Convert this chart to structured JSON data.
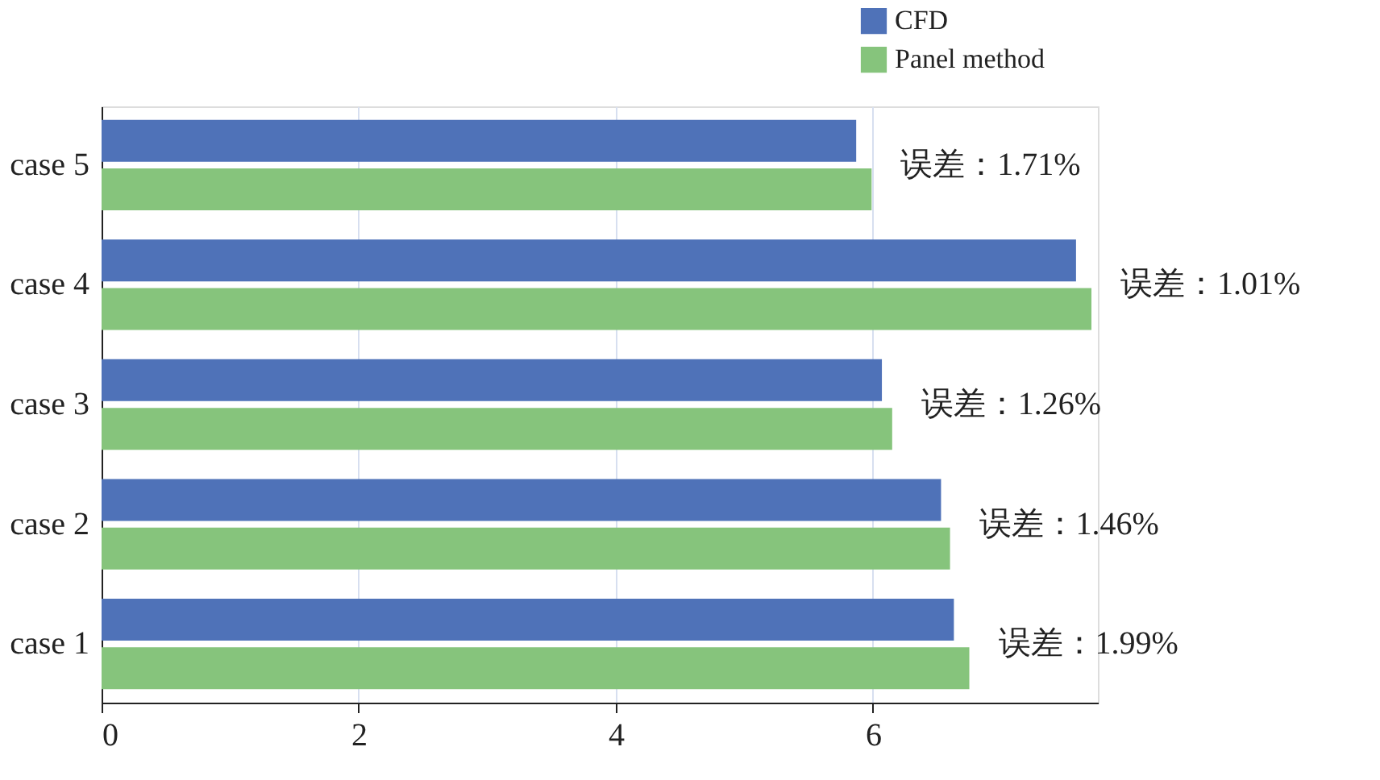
{
  "chart_data": {
    "type": "bar",
    "orientation": "horizontal",
    "categories": [
      "case 5",
      "case 4",
      "case 3",
      "case 2",
      "case 1"
    ],
    "series": [
      {
        "name": "CFD",
        "color": "#4f72b8",
        "values": [
          5.87,
          7.58,
          6.07,
          6.53,
          6.63
        ]
      },
      {
        "name": "Panel method",
        "color": "#86c47c",
        "values": [
          5.99,
          7.7,
          6.15,
          6.6,
          6.75
        ]
      }
    ],
    "xlim": [
      0,
      7.75
    ],
    "xticks": [
      0,
      2,
      4,
      6
    ],
    "grid": "x",
    "legend": "top right",
    "annotations": [
      "误差：1.71%",
      "误差：1.01%",
      "误差：1.26%",
      "误差：1.46%",
      "误差：1.99%"
    ]
  }
}
